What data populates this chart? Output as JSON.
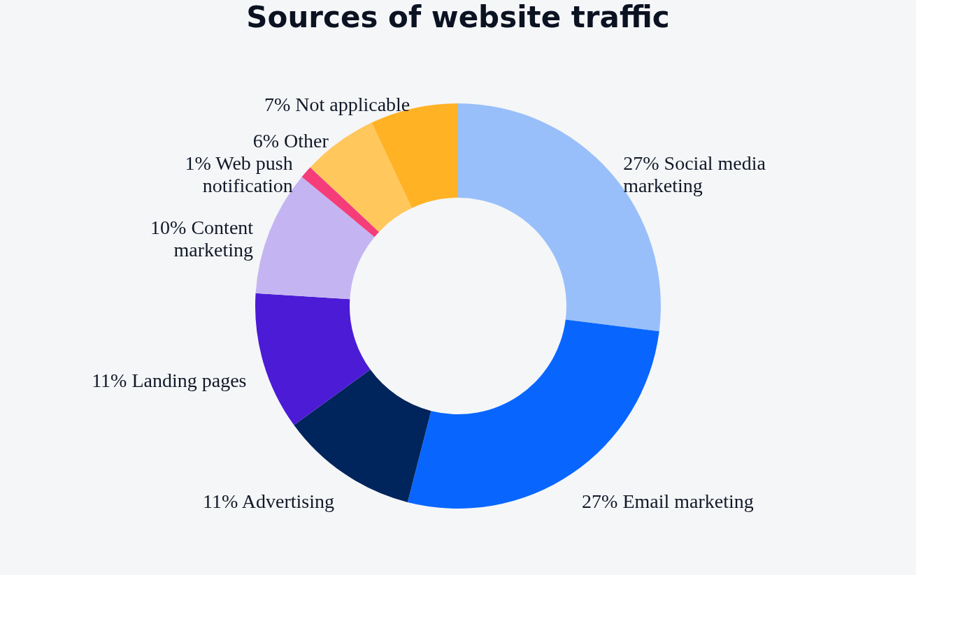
{
  "chart_data": {
    "type": "donut",
    "title": "Sources of website traffic",
    "categories": [
      "Social media marketing",
      "Email marketing",
      "Advertising",
      "Landing pages",
      "Content marketing",
      "Web push notification",
      "Other",
      "Not applicable"
    ],
    "values": [
      27,
      27,
      11,
      11,
      10,
      1,
      6,
      7
    ],
    "value_labels": [
      "27%",
      "27%",
      "11%",
      "11%",
      "10%",
      "1%",
      "6%",
      "7%"
    ],
    "colors": [
      "#98bffa",
      "#0866ff",
      "#00245c",
      "#4c1bd6",
      "#c4b5f2",
      "#f53d7a",
      "#ffc75c",
      "#ffb224"
    ],
    "legend": false
  }
}
